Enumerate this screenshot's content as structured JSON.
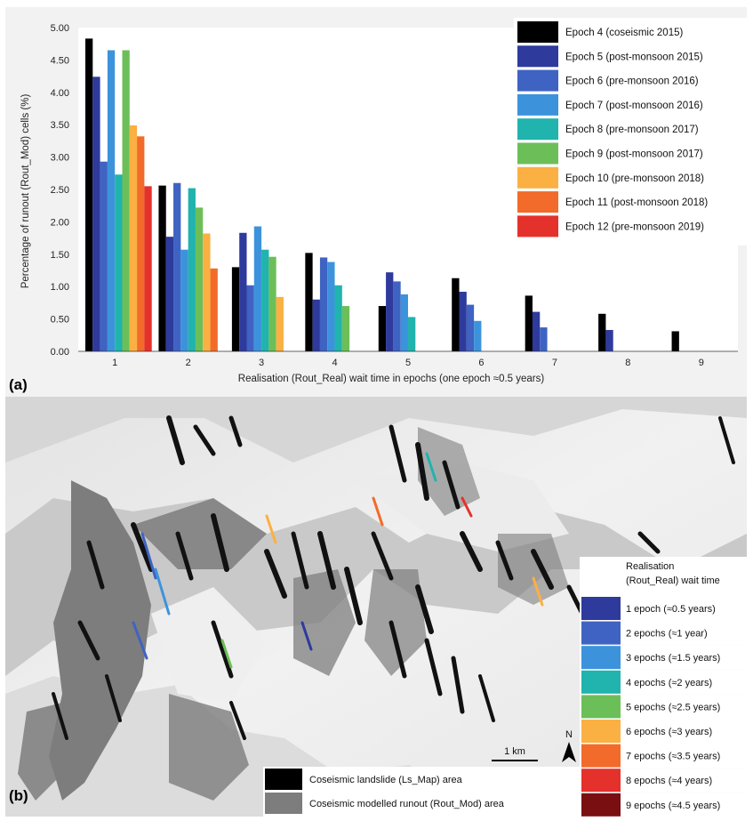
{
  "panel_a_label": "(a)",
  "panel_b_label": "(b)",
  "chart_data": {
    "type": "bar",
    "xlabel": "Realisation (Rout_Real) wait time in epochs (one epoch ≈0.5 years)",
    "ylabel": "Percentage of runout (Rout_Mod) cells (%)",
    "ylim": [
      0,
      5
    ],
    "yticks": [
      "0.00",
      "0.50",
      "1.00",
      "1.50",
      "2.00",
      "2.50",
      "3.00",
      "3.50",
      "4.00",
      "4.50",
      "5.00"
    ],
    "categories": [
      "1",
      "2",
      "3",
      "4",
      "5",
      "6",
      "7",
      "8",
      "9"
    ],
    "grid": false,
    "legend_position": "top-right",
    "series": [
      {
        "name": "Epoch 4 (coseismic 2015)",
        "color": "#000000",
        "values": [
          4.83,
          2.56,
          1.3,
          1.52,
          0.7,
          1.13,
          0.86,
          0.58,
          0.31
        ]
      },
      {
        "name": "Epoch 5 (post-monsoon 2015)",
        "color": "#2e3a9c",
        "values": [
          4.24,
          1.77,
          1.83,
          0.8,
          1.22,
          0.92,
          0.61,
          0.33,
          null
        ]
      },
      {
        "name": "Epoch 6 (pre-monsoon 2016)",
        "color": "#3f63c2",
        "values": [
          2.93,
          2.6,
          1.02,
          1.45,
          1.08,
          0.72,
          0.37,
          null,
          null
        ]
      },
      {
        "name": "Epoch 7 (post-monsoon 2016)",
        "color": "#3c93dc",
        "values": [
          4.65,
          1.57,
          1.93,
          1.38,
          0.88,
          0.47,
          null,
          null,
          null
        ]
      },
      {
        "name": "Epoch 8 (pre-monsoon 2017)",
        "color": "#21b3ad",
        "values": [
          2.73,
          2.52,
          1.57,
          1.02,
          0.53,
          null,
          null,
          null,
          null
        ]
      },
      {
        "name": "Epoch 9 (post-monsoon 2017)",
        "color": "#6cbf58",
        "values": [
          4.65,
          2.22,
          1.46,
          0.7,
          null,
          null,
          null,
          null,
          null
        ]
      },
      {
        "name": "Epoch 10 (pre-monsoon 2018)",
        "color": "#fbb043",
        "values": [
          3.49,
          1.82,
          0.84,
          null,
          null,
          null,
          null,
          null,
          null
        ]
      },
      {
        "name": "Epoch 11 (post-monsoon 2018)",
        "color": "#f26b2a",
        "values": [
          3.32,
          1.28,
          null,
          null,
          null,
          null,
          null,
          null,
          null
        ]
      },
      {
        "name": "Epoch 12 (pre-monsoon 2019)",
        "color": "#e5312b",
        "values": [
          2.55,
          null,
          null,
          null,
          null,
          null,
          null,
          null,
          null
        ]
      }
    ]
  },
  "map": {
    "scale_label": "1 km",
    "north_label": "N",
    "legend_title_line1": "Realisation",
    "legend_title_line2": "(Rout_Real) wait time",
    "wait_classes": [
      {
        "label": "1 epoch (≈0.5 years)",
        "color": "#2e3a9c"
      },
      {
        "label": "2 epochs (≈1 year)",
        "color": "#3f63c2"
      },
      {
        "label": "3 epochs (≈1.5 years)",
        "color": "#3c93dc"
      },
      {
        "label": "4 epochs (≈2 years)",
        "color": "#21b3ad"
      },
      {
        "label": "5 epochs (≈2.5 years)",
        "color": "#6cbf58"
      },
      {
        "label": "6 epochs (≈3 years)",
        "color": "#fbb043"
      },
      {
        "label": "7 epochs (≈3.5 years)",
        "color": "#f26b2a"
      },
      {
        "label": "8 epochs (≈4 years)",
        "color": "#e5312b"
      },
      {
        "label": "9 epochs (≈4.5 years)",
        "color": "#7a0f12"
      }
    ],
    "area_legend": [
      {
        "label": "Coseismic landslide (Ls_Map) area",
        "color": "#000000"
      },
      {
        "label": "Coseismic modelled runout (Rout_Mod) area",
        "color": "#7d7d7d"
      }
    ]
  }
}
